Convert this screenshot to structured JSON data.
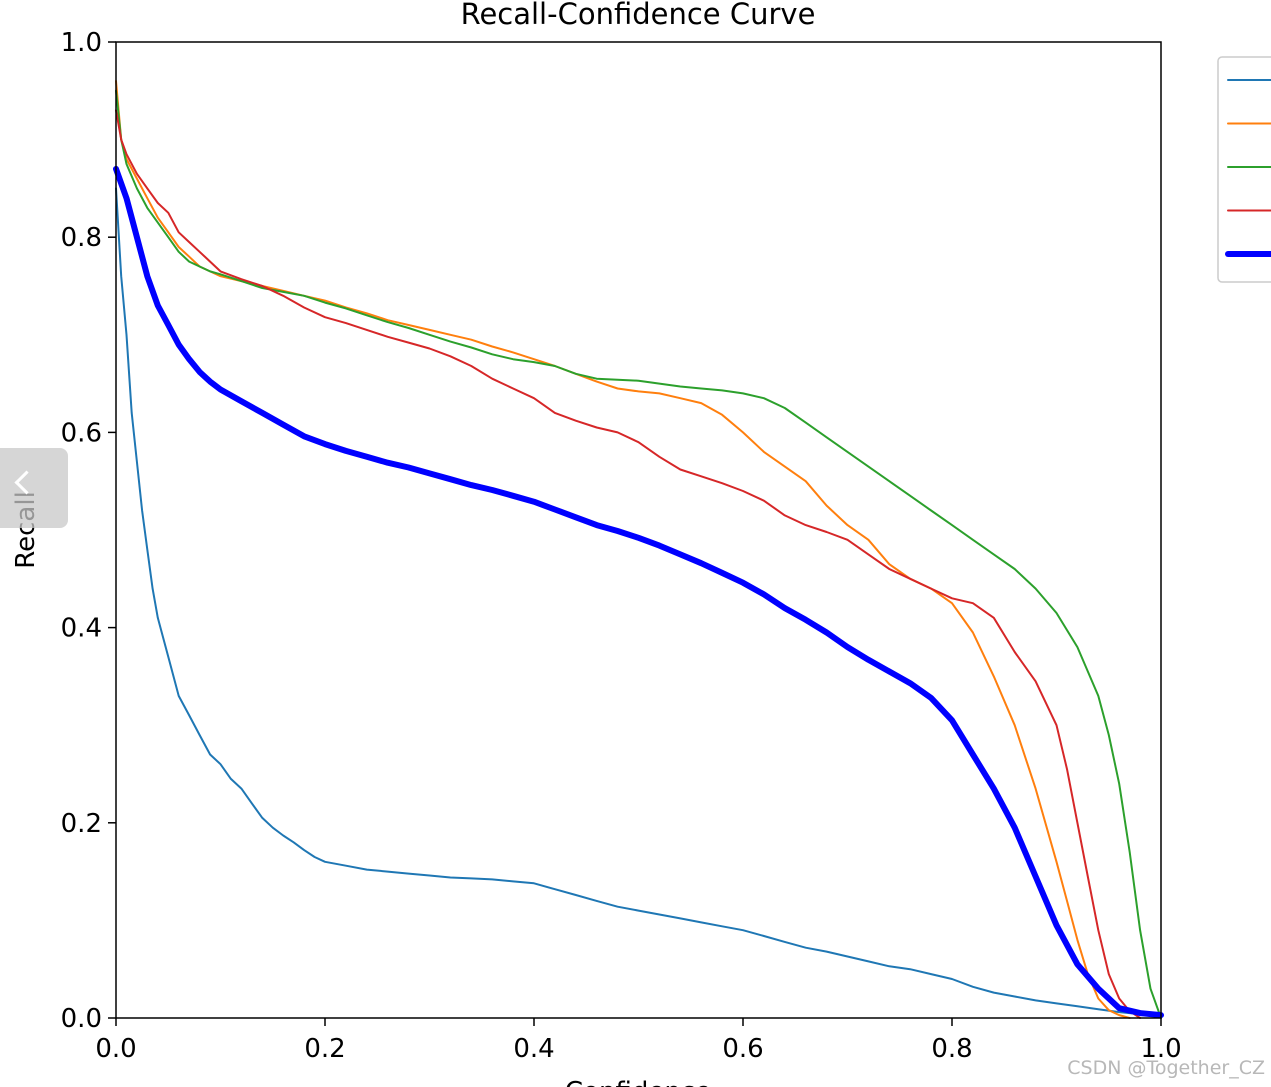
{
  "chart_data": {
    "type": "line",
    "title": "Recall-Confidence Curve",
    "xlabel": "Confidence",
    "ylabel": "Recall",
    "xlim": [
      0,
      1
    ],
    "ylim": [
      0,
      1
    ],
    "xticks": [
      "0.0",
      "0.2",
      "0.4",
      "0.6",
      "0.8",
      "1.0"
    ],
    "yticks": [
      "0.0",
      "0.2",
      "0.4",
      "0.6",
      "0.8",
      "1.0"
    ],
    "grid": false,
    "legend": "outside-right",
    "series": [
      {
        "color": "#1f77b4",
        "width": 2,
        "x": [
          0,
          0.005,
          0.01,
          0.015,
          0.02,
          0.025,
          0.03,
          0.035,
          0.04,
          0.05,
          0.06,
          0.07,
          0.08,
          0.09,
          0.1,
          0.11,
          0.12,
          0.13,
          0.14,
          0.15,
          0.16,
          0.17,
          0.18,
          0.19,
          0.2,
          0.22,
          0.24,
          0.26,
          0.28,
          0.3,
          0.32,
          0.34,
          0.36,
          0.38,
          0.4,
          0.42,
          0.44,
          0.46,
          0.48,
          0.5,
          0.52,
          0.54,
          0.56,
          0.58,
          0.6,
          0.62,
          0.64,
          0.66,
          0.68,
          0.7,
          0.72,
          0.74,
          0.76,
          0.78,
          0.8,
          0.82,
          0.84,
          0.86,
          0.88,
          0.9,
          0.92,
          0.94,
          0.96,
          0.98,
          1.0
        ],
        "y": [
          0.85,
          0.76,
          0.7,
          0.62,
          0.57,
          0.52,
          0.48,
          0.44,
          0.41,
          0.37,
          0.33,
          0.31,
          0.29,
          0.27,
          0.26,
          0.245,
          0.235,
          0.22,
          0.205,
          0.195,
          0.187,
          0.18,
          0.172,
          0.165,
          0.16,
          0.156,
          0.152,
          0.15,
          0.148,
          0.146,
          0.144,
          0.143,
          0.142,
          0.14,
          0.138,
          0.132,
          0.126,
          0.12,
          0.114,
          0.11,
          0.106,
          0.102,
          0.098,
          0.094,
          0.09,
          0.084,
          0.078,
          0.072,
          0.068,
          0.063,
          0.058,
          0.053,
          0.05,
          0.045,
          0.04,
          0.032,
          0.026,
          0.022,
          0.018,
          0.015,
          0.012,
          0.009,
          0.006,
          0.004,
          0.002
        ]
      },
      {
        "color": "#ff7f0e",
        "width": 2,
        "x": [
          0,
          0.005,
          0.01,
          0.02,
          0.03,
          0.04,
          0.05,
          0.06,
          0.07,
          0.08,
          0.09,
          0.1,
          0.12,
          0.14,
          0.16,
          0.18,
          0.2,
          0.22,
          0.24,
          0.26,
          0.28,
          0.3,
          0.32,
          0.34,
          0.36,
          0.38,
          0.4,
          0.42,
          0.44,
          0.46,
          0.48,
          0.5,
          0.52,
          0.54,
          0.56,
          0.58,
          0.6,
          0.62,
          0.64,
          0.66,
          0.68,
          0.7,
          0.72,
          0.74,
          0.76,
          0.78,
          0.8,
          0.82,
          0.84,
          0.86,
          0.88,
          0.9,
          0.91,
          0.92,
          0.93,
          0.94,
          0.95,
          0.96,
          0.97
        ],
        "y": [
          0.96,
          0.9,
          0.88,
          0.86,
          0.84,
          0.82,
          0.805,
          0.79,
          0.78,
          0.77,
          0.765,
          0.76,
          0.755,
          0.75,
          0.745,
          0.74,
          0.735,
          0.728,
          0.722,
          0.715,
          0.71,
          0.705,
          0.7,
          0.695,
          0.688,
          0.682,
          0.675,
          0.668,
          0.66,
          0.652,
          0.645,
          0.642,
          0.64,
          0.635,
          0.63,
          0.618,
          0.6,
          0.58,
          0.565,
          0.55,
          0.525,
          0.505,
          0.49,
          0.465,
          0.45,
          0.44,
          0.425,
          0.395,
          0.35,
          0.3,
          0.235,
          0.16,
          0.12,
          0.08,
          0.045,
          0.02,
          0.008,
          0.003,
          0.0
        ]
      },
      {
        "color": "#2ca02c",
        "width": 2,
        "x": [
          0,
          0.005,
          0.01,
          0.02,
          0.03,
          0.04,
          0.05,
          0.06,
          0.07,
          0.08,
          0.09,
          0.1,
          0.12,
          0.14,
          0.16,
          0.18,
          0.2,
          0.22,
          0.24,
          0.26,
          0.28,
          0.3,
          0.32,
          0.34,
          0.36,
          0.38,
          0.4,
          0.42,
          0.44,
          0.46,
          0.48,
          0.5,
          0.52,
          0.54,
          0.56,
          0.58,
          0.6,
          0.62,
          0.64,
          0.66,
          0.68,
          0.7,
          0.72,
          0.74,
          0.76,
          0.78,
          0.8,
          0.82,
          0.84,
          0.86,
          0.88,
          0.9,
          0.92,
          0.94,
          0.95,
          0.96,
          0.97,
          0.98,
          0.99,
          1.0
        ],
        "y": [
          0.95,
          0.9,
          0.875,
          0.85,
          0.83,
          0.815,
          0.8,
          0.785,
          0.775,
          0.77,
          0.765,
          0.762,
          0.755,
          0.748,
          0.744,
          0.74,
          0.733,
          0.727,
          0.72,
          0.713,
          0.707,
          0.7,
          0.693,
          0.687,
          0.68,
          0.675,
          0.672,
          0.668,
          0.66,
          0.655,
          0.654,
          0.653,
          0.65,
          0.647,
          0.645,
          0.643,
          0.64,
          0.635,
          0.625,
          0.61,
          0.595,
          0.58,
          0.565,
          0.55,
          0.535,
          0.52,
          0.505,
          0.49,
          0.475,
          0.46,
          0.44,
          0.415,
          0.38,
          0.33,
          0.29,
          0.24,
          0.17,
          0.09,
          0.03,
          0.0
        ]
      },
      {
        "color": "#d62728",
        "width": 2,
        "x": [
          0,
          0.005,
          0.01,
          0.02,
          0.03,
          0.04,
          0.05,
          0.06,
          0.07,
          0.08,
          0.09,
          0.1,
          0.12,
          0.14,
          0.16,
          0.18,
          0.2,
          0.22,
          0.24,
          0.26,
          0.28,
          0.3,
          0.32,
          0.34,
          0.36,
          0.38,
          0.4,
          0.42,
          0.44,
          0.46,
          0.48,
          0.5,
          0.52,
          0.54,
          0.56,
          0.58,
          0.6,
          0.62,
          0.64,
          0.66,
          0.68,
          0.7,
          0.72,
          0.74,
          0.76,
          0.78,
          0.8,
          0.82,
          0.84,
          0.86,
          0.88,
          0.9,
          0.91,
          0.92,
          0.93,
          0.94,
          0.95,
          0.96,
          0.97,
          0.98
        ],
        "y": [
          0.93,
          0.9,
          0.885,
          0.865,
          0.85,
          0.835,
          0.825,
          0.805,
          0.795,
          0.785,
          0.775,
          0.765,
          0.757,
          0.75,
          0.74,
          0.728,
          0.718,
          0.712,
          0.705,
          0.698,
          0.692,
          0.686,
          0.678,
          0.668,
          0.655,
          0.645,
          0.635,
          0.62,
          0.612,
          0.605,
          0.6,
          0.59,
          0.575,
          0.562,
          0.555,
          0.548,
          0.54,
          0.53,
          0.515,
          0.505,
          0.498,
          0.49,
          0.475,
          0.46,
          0.45,
          0.44,
          0.43,
          0.425,
          0.41,
          0.375,
          0.345,
          0.3,
          0.255,
          0.2,
          0.145,
          0.09,
          0.045,
          0.02,
          0.007,
          0.0
        ]
      },
      {
        "color": "#0000ff",
        "width": 6,
        "x": [
          0,
          0.01,
          0.02,
          0.03,
          0.04,
          0.05,
          0.06,
          0.07,
          0.08,
          0.09,
          0.1,
          0.12,
          0.14,
          0.16,
          0.18,
          0.2,
          0.22,
          0.24,
          0.26,
          0.28,
          0.3,
          0.32,
          0.34,
          0.36,
          0.38,
          0.4,
          0.42,
          0.44,
          0.46,
          0.48,
          0.5,
          0.52,
          0.54,
          0.56,
          0.58,
          0.6,
          0.62,
          0.64,
          0.66,
          0.68,
          0.7,
          0.72,
          0.74,
          0.76,
          0.78,
          0.8,
          0.82,
          0.84,
          0.86,
          0.88,
          0.9,
          0.92,
          0.94,
          0.96,
          0.98,
          1.0
        ],
        "y": [
          0.87,
          0.84,
          0.8,
          0.76,
          0.73,
          0.71,
          0.69,
          0.675,
          0.662,
          0.652,
          0.644,
          0.632,
          0.62,
          0.608,
          0.596,
          0.588,
          0.581,
          0.575,
          0.569,
          0.564,
          0.558,
          0.552,
          0.546,
          0.541,
          0.535,
          0.529,
          0.521,
          0.513,
          0.505,
          0.499,
          0.492,
          0.484,
          0.475,
          0.466,
          0.456,
          0.446,
          0.434,
          0.42,
          0.408,
          0.395,
          0.38,
          0.367,
          0.355,
          0.343,
          0.328,
          0.305,
          0.27,
          0.235,
          0.195,
          0.145,
          0.095,
          0.055,
          0.03,
          0.01,
          0.005,
          0.003
        ]
      }
    ]
  },
  "watermark": "CSDN @Together_CZ"
}
